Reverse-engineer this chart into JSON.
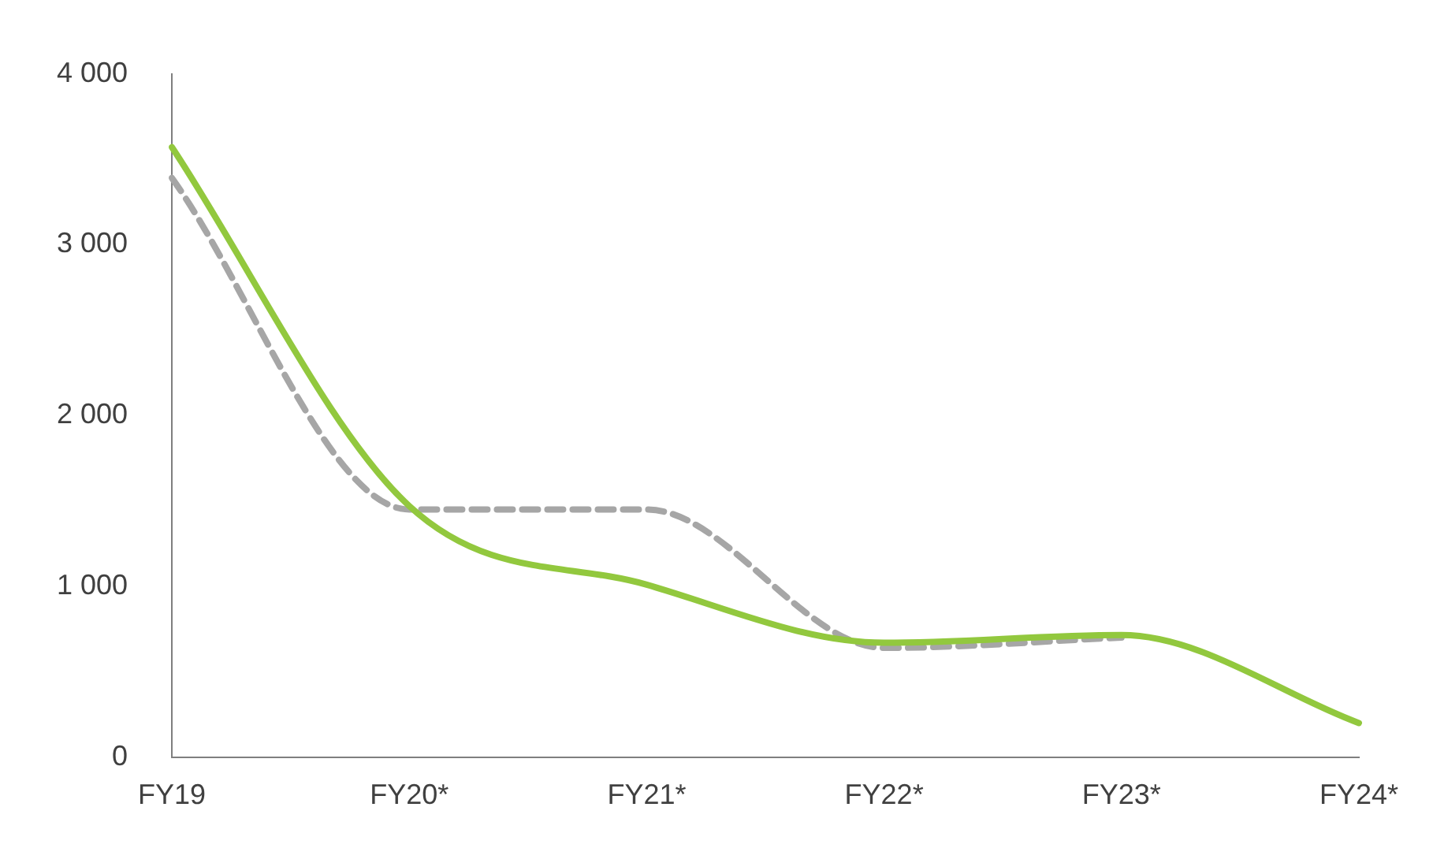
{
  "chart_data": {
    "type": "line",
    "categories": [
      "FY19",
      "FY20*",
      "FY21*",
      "FY22*",
      "FY23*",
      "FY24*"
    ],
    "series": [
      {
        "color": "#92c83e",
        "line_style": "solid",
        "values": [
          3570,
          1470,
          1010,
          670,
          715,
          200
        ]
      },
      {
        "color": "#a6a6a6",
        "line_style": "dashed",
        "values": [
          3390,
          1450,
          1450,
          640,
          700,
          null
        ]
      }
    ],
    "ylim": [
      0,
      4000
    ],
    "yticks": [
      {
        "value": 0,
        "label": "0"
      },
      {
        "value": 1000,
        "label": "1 000"
      },
      {
        "value": 2000,
        "label": "2 000"
      },
      {
        "value": 3000,
        "label": "3 000"
      },
      {
        "value": 4000,
        "label": "4 000"
      }
    ],
    "grid": false,
    "legend": false,
    "marker": "none"
  }
}
